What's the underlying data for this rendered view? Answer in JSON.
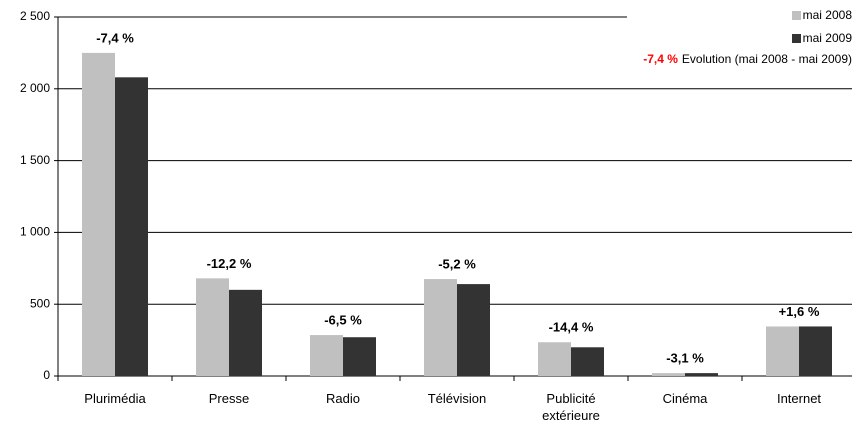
{
  "chart_data": {
    "type": "bar",
    "categories": [
      "Plurimédia",
      "Presse",
      "Radio",
      "Télévision",
      "Publicité extérieure",
      "Cinéma",
      "Internet"
    ],
    "series": [
      {
        "name": "mai 2008",
        "color": "#c0c0c0",
        "values": [
          2250,
          680,
          285,
          675,
          235,
          20,
          345
        ]
      },
      {
        "name": "mai 2009",
        "color": "#333333",
        "values": [
          2080,
          600,
          270,
          640,
          200,
          20,
          345
        ]
      }
    ],
    "annotations": [
      {
        "text": "-7,4 %",
        "color": "#ff0000"
      },
      {
        "text": "-12,2 %",
        "color": "#ff0000"
      },
      {
        "text": "-6,5 %",
        "color": "#ff0000"
      },
      {
        "text": "-5,2 %",
        "color": "#ff0000"
      },
      {
        "text": "-14,4 %",
        "color": "#ff0000"
      },
      {
        "text": "-3,1 %",
        "color": "#ff0000"
      },
      {
        "text": "+1,6 %",
        "color": "#00ff00"
      }
    ],
    "legend_note": {
      "value_text": "-7,4 %",
      "color": "#ff0000",
      "text": "Evolution (mai 2008 - mai 2009)"
    },
    "ylim": [
      0,
      2500
    ],
    "yticks": [
      {
        "value": 0,
        "label": "0"
      },
      {
        "value": 500,
        "label": "500"
      },
      {
        "value": 1000,
        "label": "1 000"
      },
      {
        "value": 1500,
        "label": "1 500"
      },
      {
        "value": 2000,
        "label": "2 000"
      },
      {
        "value": 2500,
        "label": "2 500"
      }
    ],
    "grid": true,
    "legend": "top-right"
  }
}
